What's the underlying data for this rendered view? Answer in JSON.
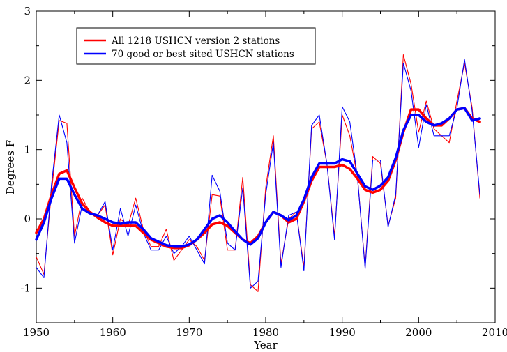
{
  "chart_data": {
    "type": "line",
    "title": "",
    "xlabel": "Year",
    "ylabel": "Degrees F",
    "xlim": [
      1950,
      2010
    ],
    "ylim": [
      -1.5,
      3
    ],
    "x_ticks": [
      1950,
      1960,
      1970,
      1980,
      1990,
      2000,
      2010
    ],
    "y_ticks": [
      -1,
      0,
      1,
      2,
      3
    ],
    "x_tick_labels": [
      "1950",
      "1960",
      "1970",
      "1980",
      "1990",
      "2000",
      "2010"
    ],
    "y_tick_labels": [
      "-1",
      "0",
      "1",
      "2",
      "3"
    ],
    "grid": false,
    "legend_position": "top-left",
    "x": [
      1950,
      1951,
      1952,
      1953,
      1954,
      1955,
      1956,
      1957,
      1958,
      1959,
      1960,
      1961,
      1962,
      1963,
      1964,
      1965,
      1966,
      1967,
      1968,
      1969,
      1970,
      1971,
      1972,
      1973,
      1974,
      1975,
      1976,
      1977,
      1978,
      1979,
      1980,
      1981,
      1982,
      1983,
      1984,
      1985,
      1986,
      1987,
      1988,
      1989,
      1990,
      1991,
      1992,
      1993,
      1994,
      1995,
      1996,
      1997,
      1998,
      1999,
      2000,
      2001,
      2002,
      2003,
      2004,
      2005,
      2006,
      2007,
      2008
    ],
    "series": [
      {
        "name": "All 1218 USHCN version 2 stations",
        "color": "#ff0000",
        "kind": "annual",
        "values": [
          -0.55,
          -0.8,
          0.4,
          1.42,
          1.38,
          -0.25,
          0.3,
          0.1,
          0.05,
          0.2,
          -0.52,
          0.0,
          -0.1,
          0.3,
          -0.15,
          -0.4,
          -0.4,
          -0.15,
          -0.6,
          -0.45,
          -0.3,
          -0.4,
          -0.6,
          0.35,
          0.33,
          -0.45,
          -0.45,
          0.6,
          -0.95,
          -1.05,
          0.45,
          1.2,
          -0.65,
          0.0,
          0.1,
          -0.7,
          1.3,
          1.4,
          0.8,
          -0.25,
          1.5,
          1.2,
          0.6,
          -0.7,
          0.9,
          0.8,
          -0.1,
          0.3,
          2.37,
          1.95,
          1.25,
          1.7,
          1.3,
          1.2,
          1.1,
          1.7,
          2.25,
          1.6,
          0.3
        ]
      },
      {
        "name": "70 good or best sited USHCN stations",
        "color": "#0000ff",
        "kind": "annual",
        "values": [
          -0.7,
          -0.85,
          0.5,
          1.5,
          1.1,
          -0.35,
          0.2,
          0.1,
          0.05,
          0.25,
          -0.45,
          0.15,
          -0.25,
          0.2,
          -0.2,
          -0.45,
          -0.45,
          -0.25,
          -0.5,
          -0.4,
          -0.25,
          -0.45,
          -0.65,
          0.63,
          0.4,
          -0.35,
          -0.45,
          0.45,
          -1.0,
          -0.9,
          0.35,
          1.1,
          -0.7,
          0.05,
          0.1,
          -0.75,
          1.35,
          1.5,
          0.8,
          -0.3,
          1.62,
          1.4,
          0.6,
          -0.72,
          0.85,
          0.85,
          -0.12,
          0.35,
          2.25,
          1.85,
          1.03,
          1.65,
          1.2,
          1.2,
          1.2,
          1.6,
          2.3,
          1.55,
          0.35
        ]
      },
      {
        "name": "",
        "color": "#ff0000",
        "kind": "smoothed",
        "values": [
          -0.2,
          0.0,
          0.35,
          0.65,
          0.7,
          0.45,
          0.22,
          0.1,
          0.02,
          -0.05,
          -0.1,
          -0.1,
          -0.1,
          -0.1,
          -0.2,
          -0.3,
          -0.35,
          -0.4,
          -0.42,
          -0.42,
          -0.38,
          -0.3,
          -0.2,
          -0.08,
          -0.05,
          -0.1,
          -0.2,
          -0.3,
          -0.35,
          -0.25,
          -0.05,
          0.1,
          0.05,
          -0.05,
          0.0,
          0.25,
          0.55,
          0.75,
          0.75,
          0.75,
          0.78,
          0.72,
          0.58,
          0.42,
          0.38,
          0.42,
          0.55,
          0.85,
          1.25,
          1.58,
          1.58,
          1.45,
          1.35,
          1.35,
          1.45,
          1.58,
          1.6,
          1.45,
          1.4
        ]
      },
      {
        "name": "",
        "color": "#0000ff",
        "kind": "smoothed",
        "values": [
          -0.3,
          -0.05,
          0.3,
          0.58,
          0.58,
          0.35,
          0.15,
          0.08,
          0.05,
          0.0,
          -0.05,
          -0.07,
          -0.05,
          -0.05,
          -0.15,
          -0.28,
          -0.33,
          -0.38,
          -0.4,
          -0.4,
          -0.37,
          -0.3,
          -0.15,
          0.0,
          0.05,
          -0.05,
          -0.18,
          -0.3,
          -0.37,
          -0.28,
          -0.05,
          0.1,
          0.05,
          -0.02,
          0.05,
          0.28,
          0.6,
          0.8,
          0.8,
          0.8,
          0.86,
          0.83,
          0.65,
          0.47,
          0.42,
          0.48,
          0.6,
          0.88,
          1.28,
          1.5,
          1.5,
          1.4,
          1.35,
          1.38,
          1.45,
          1.58,
          1.6,
          1.42,
          1.45
        ]
      }
    ]
  }
}
